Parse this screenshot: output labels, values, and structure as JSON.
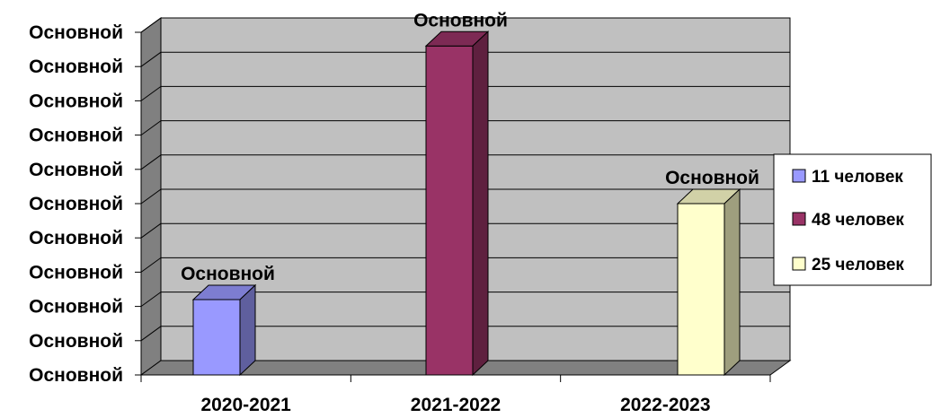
{
  "chart_data": {
    "type": "bar",
    "categories": [
      "2020-2021",
      "2021-2022",
      "2022-2023"
    ],
    "series": [
      {
        "name": "11 человек",
        "color": "#9999ff",
        "values": [
          11,
          null,
          null
        ]
      },
      {
        "name": "48 человек",
        "color": "#993366",
        "values": [
          null,
          48,
          null
        ]
      },
      {
        "name": "25 человек",
        "color": "#ffffcc",
        "values": [
          null,
          null,
          25
        ]
      }
    ],
    "values": [
      11,
      48,
      25
    ],
    "data_labels": [
      "Основной",
      "Основной",
      "Основной"
    ],
    "y_tick_labels": [
      "Основной",
      "Основной",
      "Основной",
      "Основной",
      "Основной",
      "Основной",
      "Основной",
      "Основной",
      "Основной",
      "Основной",
      "Основной"
    ],
    "ylim": [
      0,
      50
    ],
    "grid": true,
    "legend_position": "right",
    "plot_background": "#c0c0c0"
  }
}
